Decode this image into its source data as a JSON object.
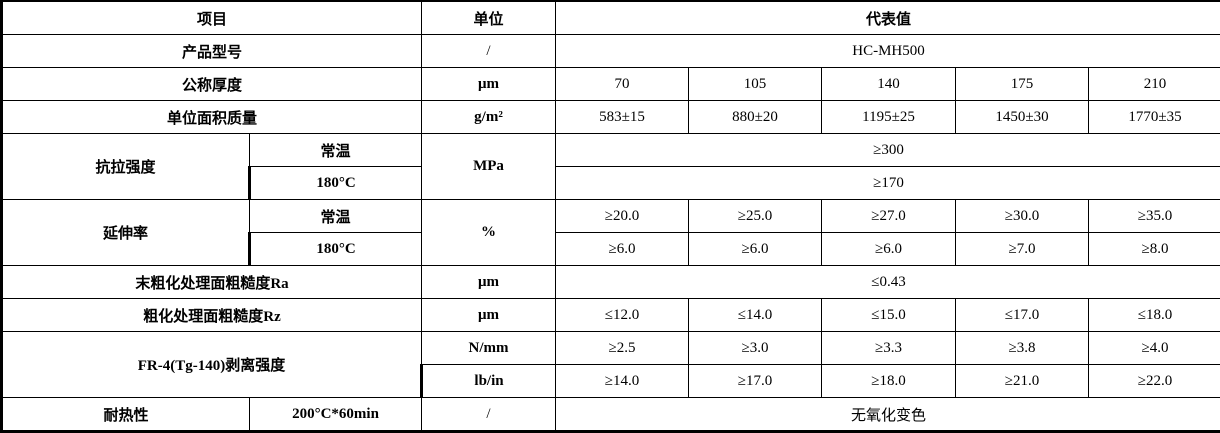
{
  "header": {
    "item": "项目",
    "unit": "单位",
    "value": "代表值"
  },
  "model": {
    "label": "产品型号",
    "unit": "/",
    "value": "HC-MH500"
  },
  "thickness": {
    "label": "公称厚度",
    "unit": "μm",
    "values": [
      "70",
      "105",
      "140",
      "175",
      "210"
    ]
  },
  "mass": {
    "label": "单位面积质量",
    "unit": "g/m²",
    "values": [
      "583±15",
      "880±20",
      "1195±25",
      "1450±30",
      "1770±35"
    ]
  },
  "tensile": {
    "label": "抗拉强度",
    "unit": "MPa",
    "rt_label": "常温",
    "rt_value": "≥300",
    "ht_label": "180°C",
    "ht_value": "≥170"
  },
  "elongation": {
    "label": "延伸率",
    "unit": "%",
    "rt_label": "常温",
    "rt_values": [
      "≥20.0",
      "≥25.0",
      "≥27.0",
      "≥30.0",
      "≥35.0"
    ],
    "ht_label": "180°C",
    "ht_values": [
      "≥6.0",
      "≥6.0",
      "≥6.0",
      "≥7.0",
      "≥8.0"
    ]
  },
  "ra": {
    "label_cn": "末粗化处理面粗糙度",
    "label_lat": "Ra",
    "unit": "μm",
    "value": "≤0.43"
  },
  "rz": {
    "label_cn": "粗化处理面粗糙度",
    "label_lat": "Rz",
    "unit": "μm",
    "values": [
      "≤12.0",
      "≤14.0",
      "≤15.0",
      "≤17.0",
      "≤18.0"
    ]
  },
  "peel": {
    "label_lat": "FR-4(Tg-140)",
    "label_cn": "剥离强度",
    "unit1": "N/mm",
    "values1": [
      "≥2.5",
      "≥3.0",
      "≥3.3",
      "≥3.8",
      "≥4.0"
    ],
    "unit2": "lb/in",
    "values2": [
      "≥14.0",
      "≥17.0",
      "≥18.0",
      "≥21.0",
      "≥22.0"
    ]
  },
  "heat": {
    "label": "耐热性",
    "condition": "200°C*60min",
    "unit": "/",
    "value": "无氧化变色"
  }
}
